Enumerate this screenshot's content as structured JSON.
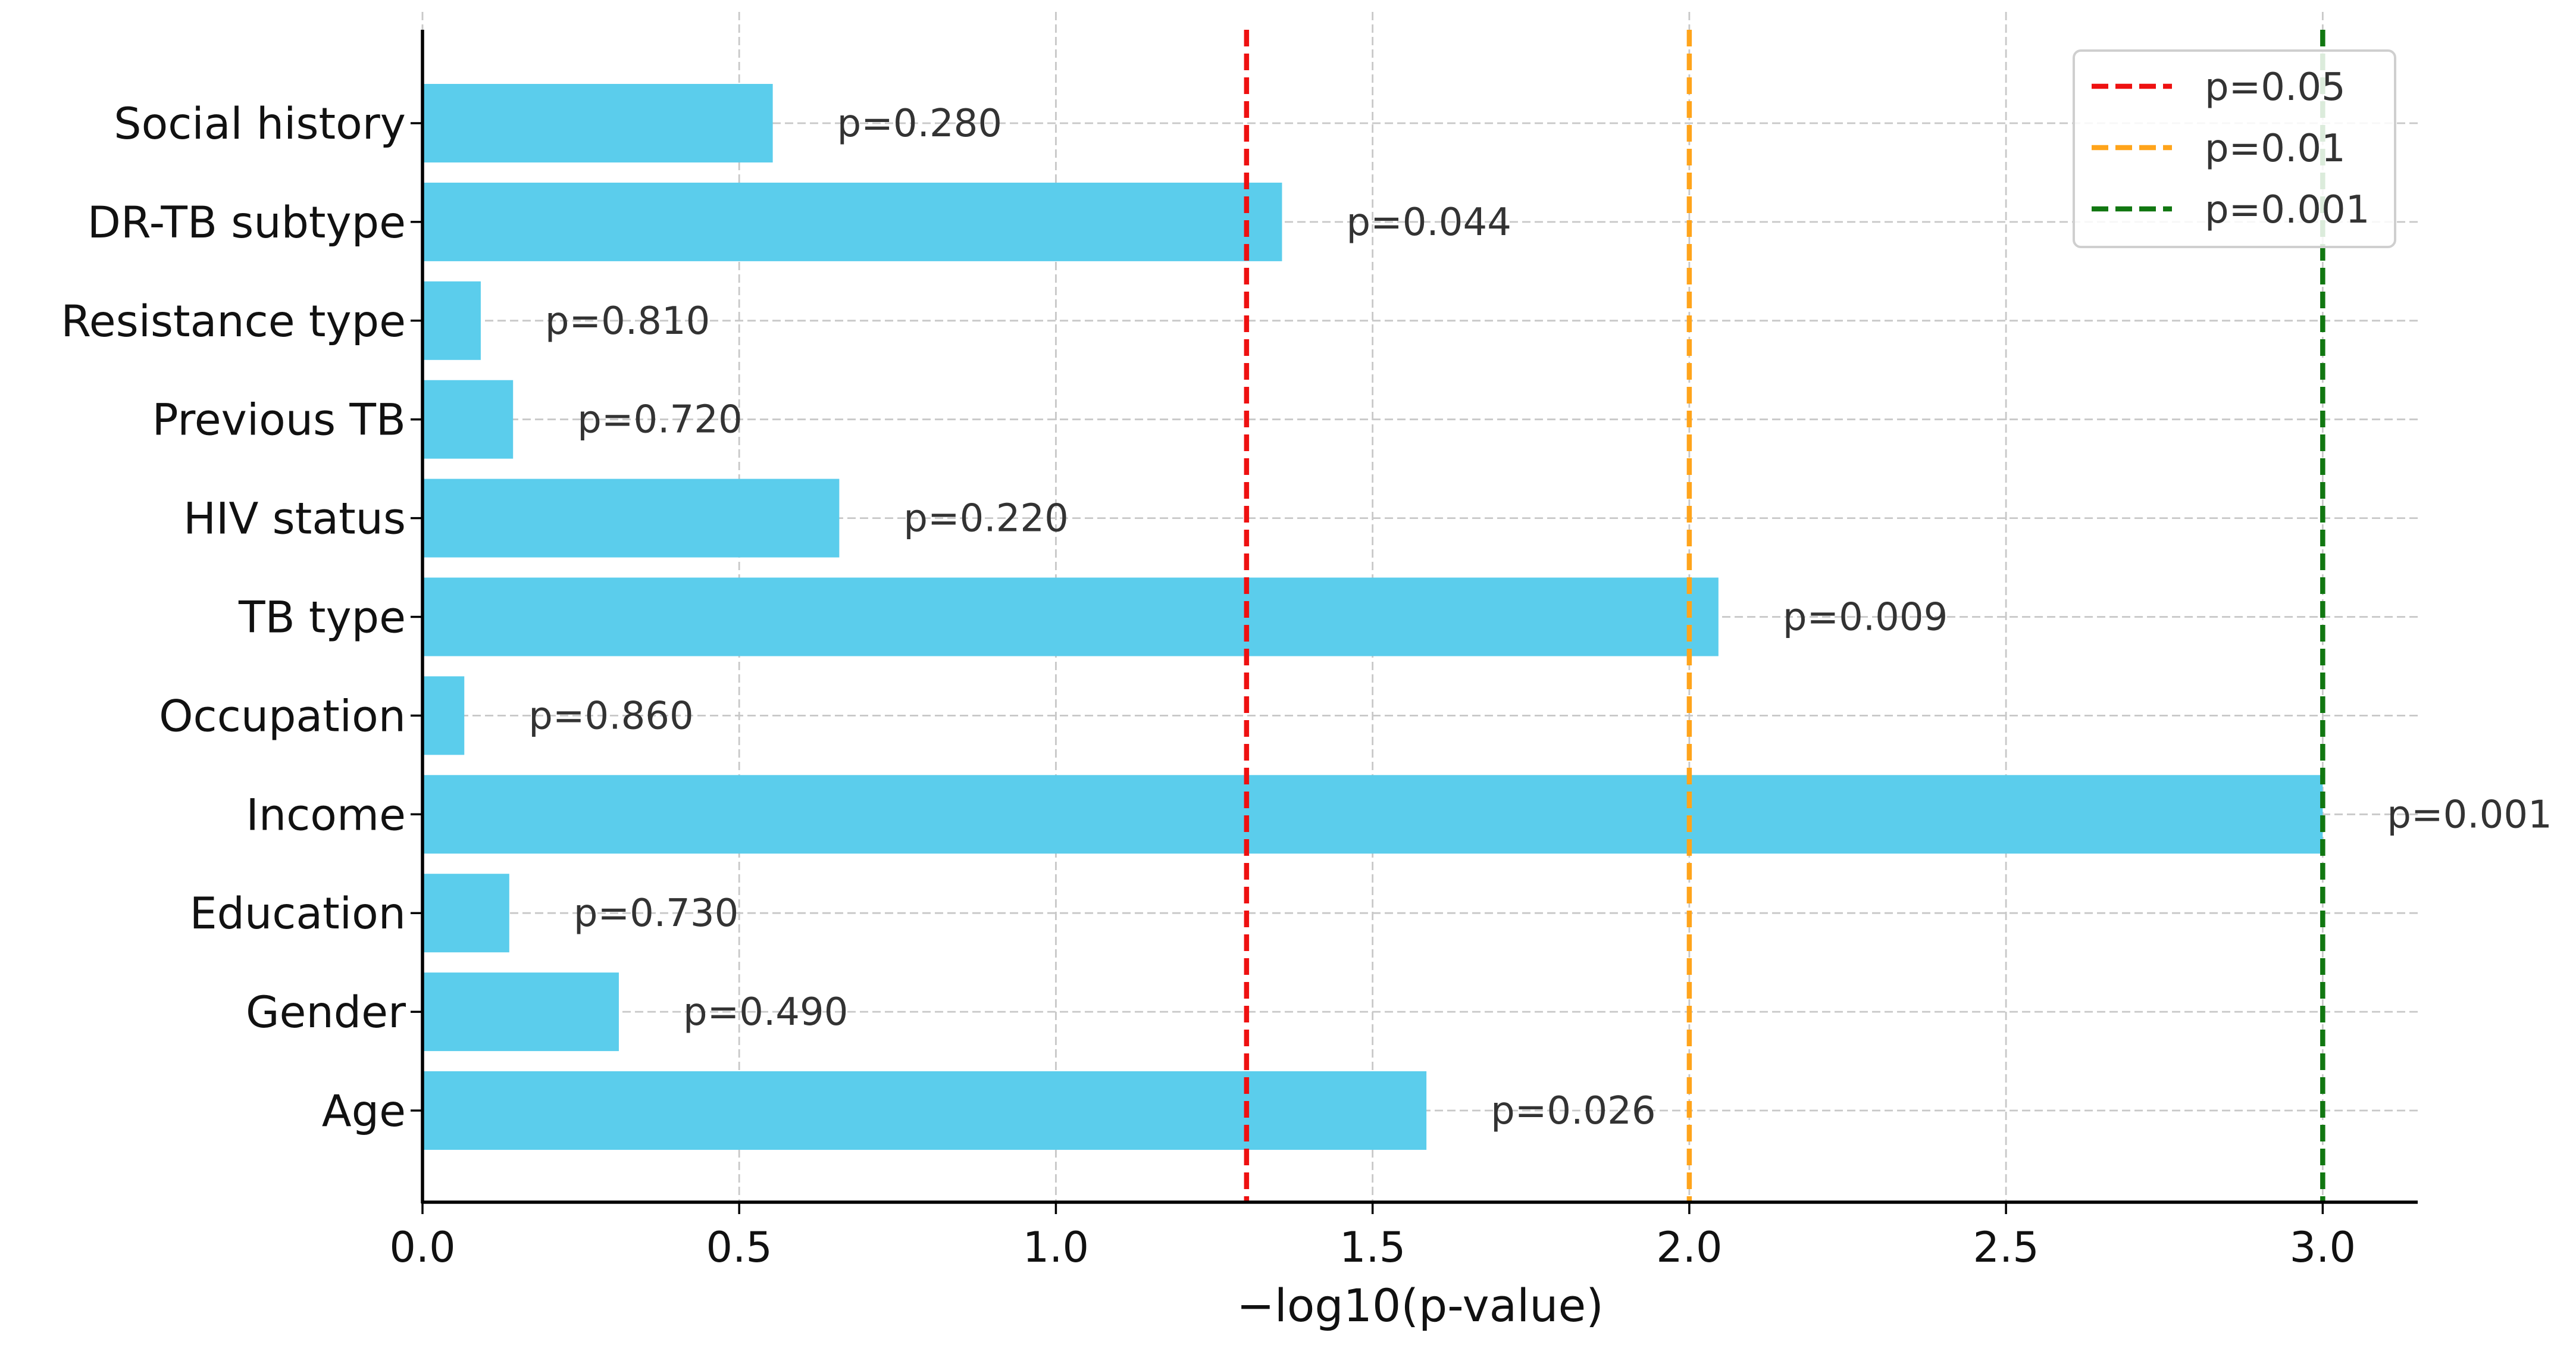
{
  "chart_data": {
    "type": "bar",
    "orientation": "horizontal",
    "title": "",
    "xlabel": "−log10(p-value)",
    "ylabel": "",
    "xlim": [
      0,
      3.15
    ],
    "xticks": [
      0.0,
      0.5,
      1.0,
      1.5,
      2.0,
      2.5,
      3.0
    ],
    "xtick_labels": [
      "0.0",
      "0.5",
      "1.0",
      "1.5",
      "2.0",
      "2.5",
      "3.0"
    ],
    "grid": true,
    "bar_color": "#5bcdec",
    "categories": [
      "Social history",
      "DR-TB subtype",
      "Resistance type",
      "Previous TB",
      "HIV status",
      "TB type",
      "Occupation",
      "Income",
      "Education",
      "Gender",
      "Age"
    ],
    "p_values": [
      0.28,
      0.044,
      0.81,
      0.72,
      0.22,
      0.009,
      0.86,
      0.001,
      0.73,
      0.49,
      0.026
    ],
    "values": [
      0.553,
      1.357,
      0.092,
      0.143,
      0.658,
      2.046,
      0.066,
      3.0,
      0.137,
      0.31,
      1.585
    ],
    "value_labels": [
      "p=0.280",
      "p=0.044",
      "p=0.810",
      "p=0.720",
      "p=0.220",
      "p=0.009",
      "p=0.860",
      "p=0.001",
      "p=0.730",
      "p=0.490",
      "p=0.026"
    ],
    "thresholds": [
      {
        "label": "p=0.05",
        "value": 1.301,
        "color": "#ee1111"
      },
      {
        "label": "p=0.01",
        "value": 2.0,
        "color": "#ffa41b"
      },
      {
        "label": "p=0.001",
        "value": 3.0,
        "color": "#117711"
      }
    ],
    "legend_position": "top-right"
  }
}
